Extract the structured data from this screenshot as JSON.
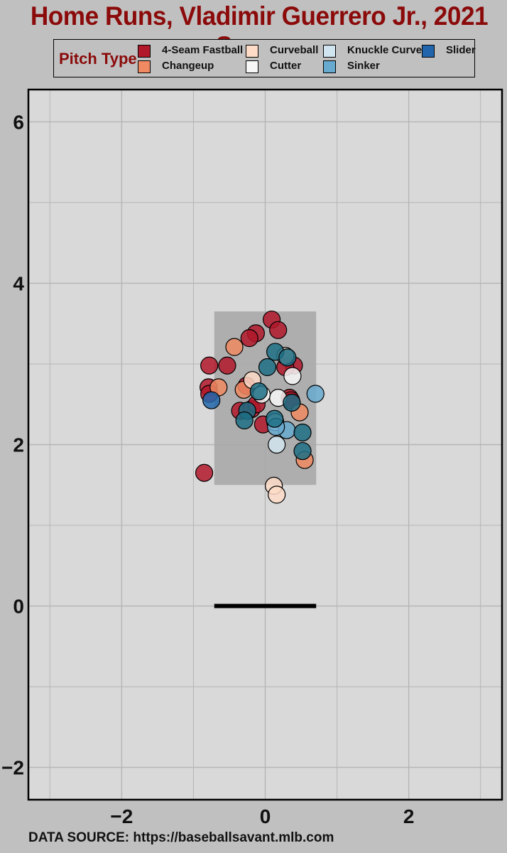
{
  "title": "Home Runs, Vladimir Guerrero Jr., 2021 Season",
  "source": "DATA SOURCE: https://baseballsavant.mlb.com",
  "legend": {
    "title": "Pitch Type",
    "items": [
      {
        "label": "4-Seam Fastball",
        "color": "#b2182b"
      },
      {
        "label": "Changeup",
        "color": "#ef8a62"
      },
      {
        "label": "Curveball",
        "color": "#fddbc7"
      },
      {
        "label": "Cutter",
        "color": "#f7f7f7"
      },
      {
        "label": "Knuckle Curve",
        "color": "#d1e5f0"
      },
      {
        "label": "Sinker",
        "color": "#67a9cf"
      },
      {
        "label": "Slider",
        "color": "#2166ac"
      }
    ]
  },
  "chart_data": {
    "type": "scatter",
    "title": "Home Runs, Vladimir Guerrero Jr., 2021 Season",
    "xlabel": "",
    "ylabel": "",
    "xlim": [
      -3.3,
      3.3
    ],
    "ylim": [
      -2.4,
      6.4
    ],
    "x_ticks": [
      -2,
      0,
      2
    ],
    "y_ticks": [
      -2,
      0,
      2,
      4,
      6
    ],
    "grid": true,
    "legend_position": "top",
    "strike_zone": {
      "x": [
        -0.71,
        0.71
      ],
      "y": [
        1.5,
        3.65
      ],
      "color": "#a9a9a9"
    },
    "home_plate": {
      "x": [
        -0.71,
        0.71
      ],
      "y": 0
    },
    "series": [
      {
        "name": "4-Seam Fastball",
        "color": "#b2182b",
        "points": [
          [
            0.09,
            3.55
          ],
          [
            0.18,
            3.42
          ],
          [
            -0.13,
            3.38
          ],
          [
            -0.22,
            3.32
          ],
          [
            -0.78,
            2.98
          ],
          [
            -0.53,
            2.98
          ],
          [
            0.4,
            2.98
          ],
          [
            0.28,
            2.96
          ],
          [
            -0.79,
            2.71
          ],
          [
            -0.26,
            2.73
          ],
          [
            -0.78,
            2.63
          ],
          [
            -0.35,
            2.42
          ],
          [
            -0.19,
            2.44
          ],
          [
            -0.12,
            2.5
          ],
          [
            -0.03,
            2.25
          ],
          [
            0.34,
            2.58
          ],
          [
            0.36,
            2.55
          ],
          [
            -0.85,
            1.65
          ]
        ]
      },
      {
        "name": "Changeup",
        "color": "#ef8a62",
        "points": [
          [
            -0.43,
            3.21
          ],
          [
            -0.65,
            2.71
          ],
          [
            -0.3,
            2.68
          ],
          [
            0.48,
            2.4
          ],
          [
            0.55,
            1.81
          ]
        ]
      },
      {
        "name": "Curveball",
        "color": "#fddbc7",
        "points": [
          [
            -0.18,
            2.8
          ],
          [
            0.28,
            3.1
          ],
          [
            0.12,
            1.49
          ],
          [
            0.16,
            1.38
          ]
        ]
      },
      {
        "name": "Cutter",
        "color": "#f7f7f7",
        "points": [
          [
            0.38,
            2.85
          ],
          [
            0.18,
            2.58
          ],
          [
            -0.05,
            2.62
          ]
        ]
      },
      {
        "name": "Knuckle Curve",
        "color": "#d1e5f0",
        "points": [
          [
            0.16,
            2.0
          ],
          [
            0.14,
            2.28
          ]
        ]
      },
      {
        "name": "Sinker",
        "color": "#67a9cf",
        "points": [
          [
            0.7,
            2.63
          ],
          [
            0.3,
            2.18
          ],
          [
            0.15,
            2.22
          ]
        ]
      },
      {
        "name": "Slider",
        "color": "#2166ac",
        "points": [
          [
            -0.75,
            2.55
          ]
        ]
      },
      {
        "name": "",
        "color": "#1d6e85",
        "points": [
          [
            0.14,
            3.15
          ],
          [
            0.31,
            3.08
          ],
          [
            0.03,
            2.96
          ],
          [
            -0.09,
            2.66
          ],
          [
            0.37,
            2.52
          ],
          [
            -0.25,
            2.42
          ],
          [
            -0.29,
            2.3
          ],
          [
            0.13,
            2.32
          ],
          [
            0.52,
            2.15
          ],
          [
            0.52,
            1.92
          ]
        ]
      }
    ]
  }
}
